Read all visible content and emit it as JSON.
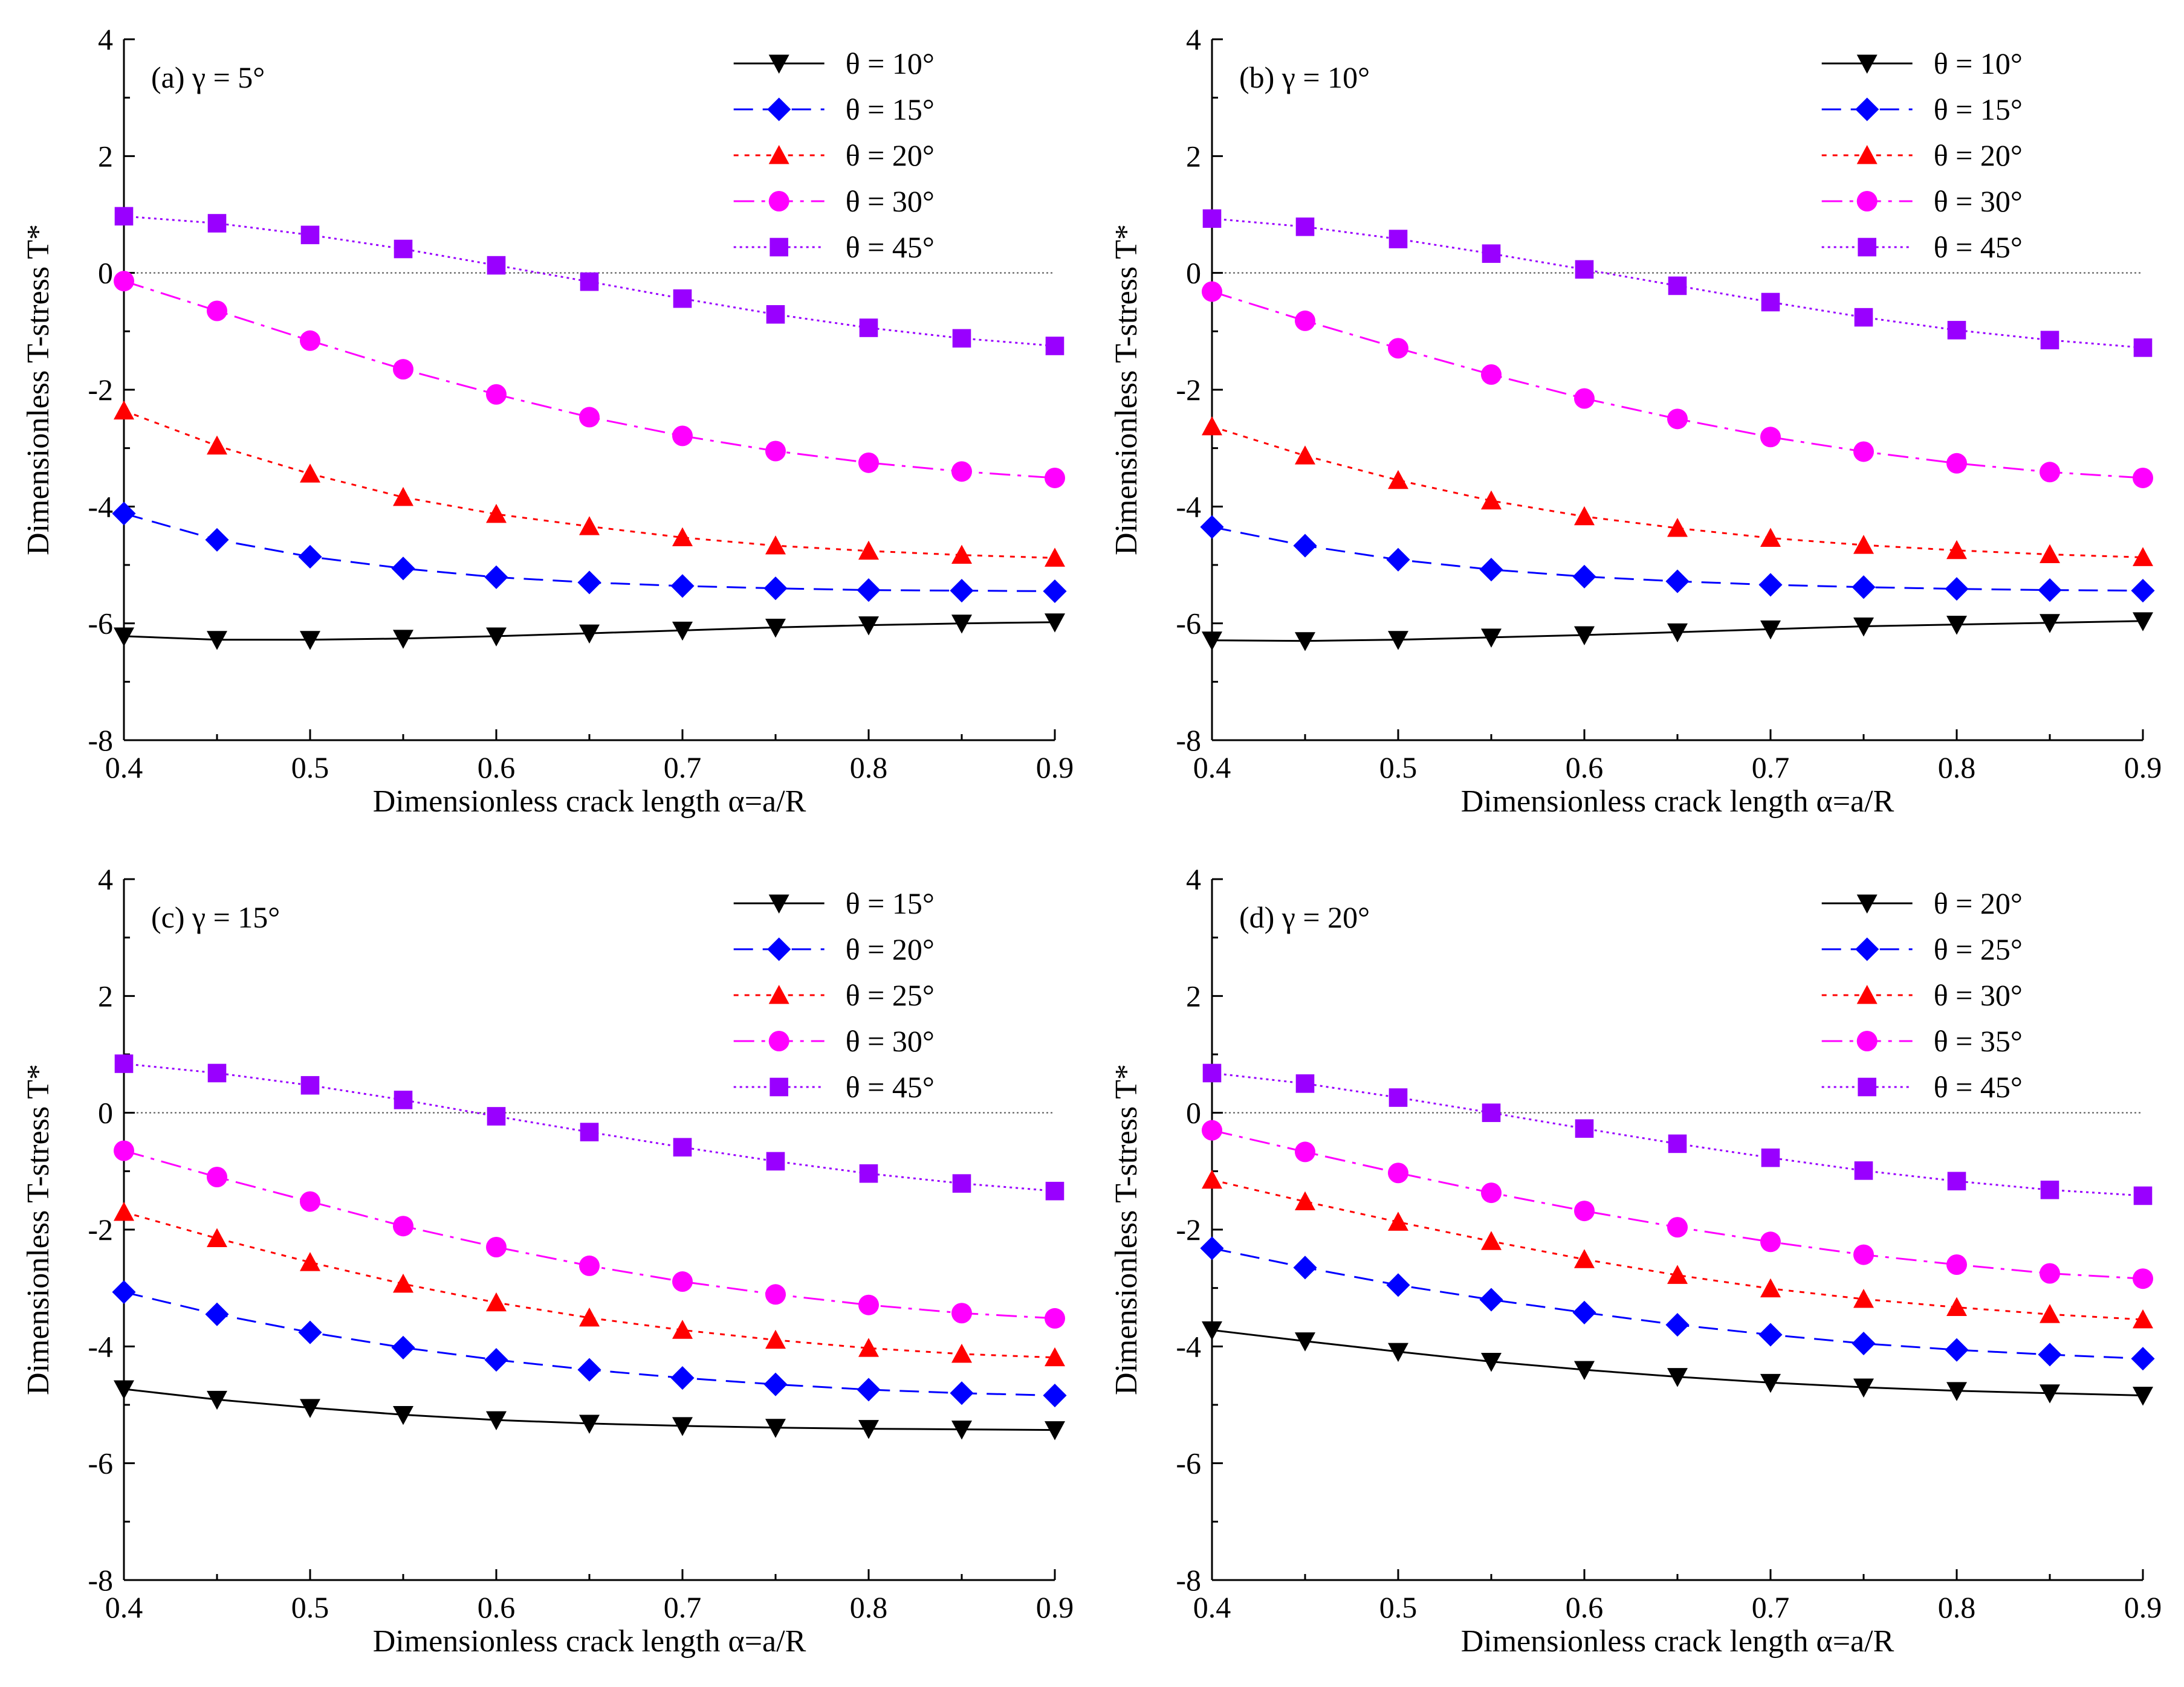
{
  "figure": {
    "ylabel": "Dimensionless T-stress T*",
    "xlabel": "Dimensionless crack length α=a/R",
    "xticks": [
      "0.4",
      "0.5",
      "0.6",
      "0.7",
      "0.8",
      "0.9"
    ],
    "yticks": [
      "-8",
      "-6",
      "-4",
      "-2",
      "0",
      "2",
      "4"
    ]
  },
  "series_styles": [
    {
      "color": "#000000",
      "marker": "triangle-down",
      "dash": "solid"
    },
    {
      "color": "#0000ff",
      "marker": "diamond",
      "dash": "dashed"
    },
    {
      "color": "#ff0000",
      "marker": "triangle-up",
      "dash": "dotted"
    },
    {
      "color": "#ff00ff",
      "marker": "circle",
      "dash": "dash-dot"
    },
    {
      "color": "#9900ff",
      "marker": "square",
      "dash": "short-dot"
    }
  ],
  "chart_data": [
    {
      "type": "line",
      "label": "(a)  γ = 5°",
      "xlabel": "Dimensionless crack length α=a/R",
      "ylabel": "Dimensionless T-stress T*",
      "xlim": [
        0.4,
        0.9
      ],
      "ylim": [
        -8,
        4
      ],
      "x": [
        0.4,
        0.45,
        0.5,
        0.55,
        0.6,
        0.65,
        0.7,
        0.75,
        0.8,
        0.85,
        0.9
      ],
      "legend_position": "top-right",
      "series": [
        {
          "name": "θ = 10°",
          "values": [
            -6.22,
            -6.28,
            -6.28,
            -6.26,
            -6.22,
            -6.17,
            -6.12,
            -6.07,
            -6.03,
            -6.0,
            -5.98
          ]
        },
        {
          "name": "θ = 15°",
          "values": [
            -4.12,
            -4.57,
            -4.86,
            -5.06,
            -5.21,
            -5.3,
            -5.36,
            -5.4,
            -5.43,
            -5.44,
            -5.45
          ]
        },
        {
          "name": "θ = 20°",
          "values": [
            -2.36,
            -2.96,
            -3.44,
            -3.84,
            -4.13,
            -4.34,
            -4.53,
            -4.67,
            -4.76,
            -4.83,
            -4.88
          ]
        },
        {
          "name": "θ = 30°",
          "values": [
            -0.14,
            -0.65,
            -1.16,
            -1.65,
            -2.08,
            -2.47,
            -2.79,
            -3.05,
            -3.25,
            -3.4,
            -3.51
          ]
        },
        {
          "name": "θ = 45°",
          "values": [
            0.97,
            0.85,
            0.65,
            0.41,
            0.13,
            -0.15,
            -0.44,
            -0.71,
            -0.94,
            -1.12,
            -1.25
          ]
        }
      ]
    },
    {
      "type": "line",
      "label": "(b)  γ = 10°",
      "xlabel": "Dimensionless crack length α=a/R",
      "ylabel": "Dimensionless T-stress T*",
      "xlim": [
        0.4,
        0.9
      ],
      "ylim": [
        -8,
        4
      ],
      "x": [
        0.4,
        0.45,
        0.5,
        0.55,
        0.6,
        0.65,
        0.7,
        0.75,
        0.8,
        0.85,
        0.9
      ],
      "legend_position": "top-right",
      "series": [
        {
          "name": "θ = 10°",
          "values": [
            -6.29,
            -6.3,
            -6.28,
            -6.24,
            -6.2,
            -6.15,
            -6.1,
            -6.05,
            -6.02,
            -5.99,
            -5.96
          ]
        },
        {
          "name": "θ = 15°",
          "values": [
            -4.35,
            -4.67,
            -4.91,
            -5.08,
            -5.2,
            -5.28,
            -5.34,
            -5.38,
            -5.41,
            -5.43,
            -5.44
          ]
        },
        {
          "name": "θ = 20°",
          "values": [
            -2.63,
            -3.13,
            -3.55,
            -3.9,
            -4.17,
            -4.37,
            -4.54,
            -4.66,
            -4.75,
            -4.82,
            -4.87
          ]
        },
        {
          "name": "θ = 30°",
          "values": [
            -0.32,
            -0.82,
            -1.29,
            -1.74,
            -2.15,
            -2.5,
            -2.81,
            -3.06,
            -3.26,
            -3.41,
            -3.51
          ]
        },
        {
          "name": "θ = 45°",
          "values": [
            0.93,
            0.79,
            0.58,
            0.33,
            0.06,
            -0.22,
            -0.5,
            -0.76,
            -0.98,
            -1.15,
            -1.28
          ]
        }
      ]
    },
    {
      "type": "line",
      "label": "(c)  γ = 15°",
      "xlabel": "Dimensionless crack length α=a/R",
      "ylabel": "Dimensionless T-stress T*",
      "xlim": [
        0.4,
        0.9
      ],
      "ylim": [
        -8,
        4
      ],
      "x": [
        0.4,
        0.45,
        0.5,
        0.55,
        0.6,
        0.65,
        0.7,
        0.75,
        0.8,
        0.85,
        0.9
      ],
      "legend_position": "top-right",
      "series": [
        {
          "name": "θ = 15°",
          "values": [
            -4.73,
            -4.91,
            -5.05,
            -5.17,
            -5.26,
            -5.32,
            -5.36,
            -5.39,
            -5.41,
            -5.42,
            -5.43
          ]
        },
        {
          "name": "θ = 20°",
          "values": [
            -3.07,
            -3.45,
            -3.76,
            -4.02,
            -4.23,
            -4.4,
            -4.54,
            -4.65,
            -4.74,
            -4.8,
            -4.84
          ]
        },
        {
          "name": "θ = 25°",
          "values": [
            -1.7,
            -2.15,
            -2.56,
            -2.93,
            -3.25,
            -3.51,
            -3.72,
            -3.89,
            -4.03,
            -4.13,
            -4.19
          ]
        },
        {
          "name": "θ = 30°",
          "values": [
            -0.65,
            -1.1,
            -1.52,
            -1.94,
            -2.3,
            -2.62,
            -2.89,
            -3.11,
            -3.29,
            -3.43,
            -3.52
          ]
        },
        {
          "name": "θ = 45°",
          "values": [
            0.84,
            0.68,
            0.47,
            0.22,
            -0.06,
            -0.33,
            -0.59,
            -0.83,
            -1.04,
            -1.21,
            -1.34
          ]
        }
      ]
    },
    {
      "type": "line",
      "label": "(d)  γ = 20°",
      "xlabel": "Dimensionless crack length α=a/R",
      "ylabel": "Dimensionless T-stress T*",
      "xlim": [
        0.4,
        0.9
      ],
      "ylim": [
        -8,
        4
      ],
      "x": [
        0.4,
        0.45,
        0.5,
        0.55,
        0.6,
        0.65,
        0.7,
        0.75,
        0.8,
        0.85,
        0.9
      ],
      "legend_position": "top-right",
      "series": [
        {
          "name": "θ = 20°",
          "values": [
            -3.72,
            -3.91,
            -4.09,
            -4.26,
            -4.4,
            -4.52,
            -4.62,
            -4.7,
            -4.76,
            -4.8,
            -4.84
          ]
        },
        {
          "name": "θ = 25°",
          "values": [
            -2.32,
            -2.65,
            -2.95,
            -3.2,
            -3.42,
            -3.63,
            -3.8,
            -3.95,
            -4.06,
            -4.14,
            -4.21
          ]
        },
        {
          "name": "θ = 30°",
          "values": [
            -1.15,
            -1.52,
            -1.87,
            -2.2,
            -2.51,
            -2.78,
            -3.01,
            -3.19,
            -3.33,
            -3.45,
            -3.54
          ]
        },
        {
          "name": "θ = 35°",
          "values": [
            -0.3,
            -0.67,
            -1.03,
            -1.37,
            -1.68,
            -1.96,
            -2.21,
            -2.43,
            -2.6,
            -2.75,
            -2.84
          ]
        },
        {
          "name": "θ = 45°",
          "values": [
            0.68,
            0.5,
            0.26,
            0.0,
            -0.27,
            -0.53,
            -0.77,
            -0.99,
            -1.17,
            -1.32,
            -1.42
          ]
        }
      ]
    }
  ]
}
